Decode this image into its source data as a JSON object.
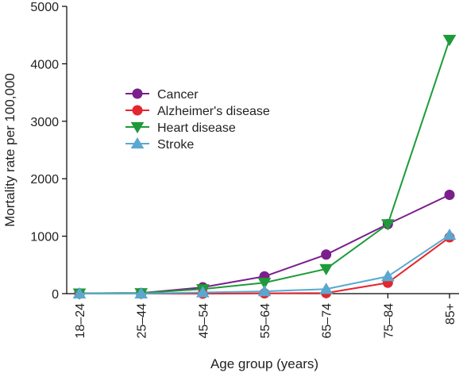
{
  "chart_data": {
    "type": "line",
    "xlabel": "Age group (years)",
    "ylabel": "Mortality rate per 100,000",
    "categories": [
      "18–24",
      "25–44",
      "45–54",
      "55–64",
      "65–74",
      "75–84",
      "85+"
    ],
    "ylim": [
      0,
      5000
    ],
    "yticks": [
      0,
      1000,
      2000,
      3000,
      4000,
      5000
    ],
    "grid": false,
    "legend_position": "center-left",
    "series": [
      {
        "name": "Cancer",
        "color": "#7b1f8c",
        "marker": "circle",
        "values": [
          5,
          10,
          110,
          300,
          680,
          1210,
          1720
        ]
      },
      {
        "name": "Alzheimer's disease",
        "color": "#e3262f",
        "marker": "circle",
        "values": [
          0,
          0,
          0,
          5,
          10,
          190,
          980
        ]
      },
      {
        "name": "Heart disease",
        "color": "#1f9a3a",
        "marker": "triangle-down",
        "values": [
          5,
          10,
          80,
          190,
          430,
          1210,
          4420
        ]
      },
      {
        "name": "Stroke",
        "color": "#5aa8d0",
        "marker": "triangle-up",
        "values": [
          0,
          0,
          20,
          40,
          80,
          300,
          1020
        ]
      }
    ]
  }
}
